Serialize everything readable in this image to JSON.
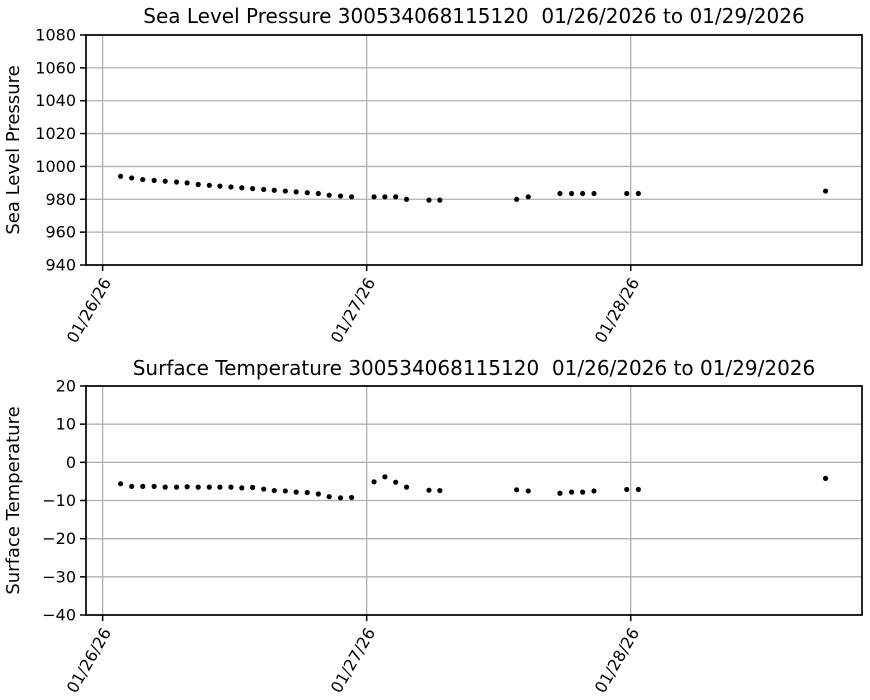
{
  "colors": {
    "background": "#ffffff",
    "grid": "#b0b0b0",
    "axis": "#000000",
    "marker": "#000000",
    "text": "#000000"
  },
  "chart_data": [
    {
      "type": "scatter",
      "title": "Sea Level Pressure 300534068115120  01/26/2026 to 01/29/2026",
      "xlabel": "",
      "ylabel": "Sea Level Pressure",
      "ylim": [
        940,
        1080
      ],
      "yticks": [
        {
          "v": 940,
          "label": "940"
        },
        {
          "v": 960,
          "label": "960"
        },
        {
          "v": 980,
          "label": "980"
        },
        {
          "v": 1000,
          "label": "1000"
        },
        {
          "v": 1020,
          "label": "1020"
        },
        {
          "v": 1040,
          "label": "1040"
        },
        {
          "v": 1060,
          "label": "1060"
        },
        {
          "v": 1080,
          "label": "1080"
        }
      ],
      "xlim_days": [
        -0.063,
        2.876
      ],
      "xticks": [
        {
          "day": 0,
          "label": "01/26/26"
        },
        {
          "day": 1,
          "label": "01/27/26"
        },
        {
          "day": 2,
          "label": "01/28/26"
        }
      ],
      "grid": true,
      "legend": "none",
      "marker": "black-dot",
      "x_days": [
        0.068,
        0.11,
        0.152,
        0.195,
        0.237,
        0.28,
        0.32,
        0.362,
        0.404,
        0.444,
        0.486,
        0.527,
        0.568,
        0.61,
        0.65,
        0.692,
        0.733,
        0.775,
        0.817,
        0.858,
        0.901,
        0.943,
        1.028,
        1.069,
        1.11,
        1.151,
        1.236,
        1.277,
        1.568,
        1.612,
        1.732,
        1.776,
        1.818,
        1.861,
        1.985,
        2.029,
        2.738
      ],
      "y": [
        994,
        993,
        992,
        991.5,
        991,
        990.5,
        990,
        989,
        988.5,
        988,
        987.5,
        987,
        986.5,
        986,
        985.5,
        985,
        984.5,
        984,
        983.5,
        982.5,
        982,
        981.5,
        981.5,
        981.5,
        981.5,
        980,
        979.5,
        979.5,
        980,
        981.5,
        983.5,
        983.5,
        983.5,
        983.5,
        983.5,
        983.5,
        985
      ]
    },
    {
      "type": "scatter",
      "title": "Surface Temperature 300534068115120  01/26/2026 to 01/29/2026",
      "xlabel": "",
      "ylabel": "Surface Temperature",
      "ylim": [
        -40,
        20
      ],
      "yticks": [
        {
          "v": -40,
          "label": "−40"
        },
        {
          "v": -30,
          "label": "−30"
        },
        {
          "v": -20,
          "label": "−20"
        },
        {
          "v": -10,
          "label": "−10"
        },
        {
          "v": 0,
          "label": "0"
        },
        {
          "v": 10,
          "label": "10"
        },
        {
          "v": 20,
          "label": "20"
        }
      ],
      "xlim_days": [
        -0.063,
        2.876
      ],
      "xticks": [
        {
          "day": 0,
          "label": "01/26/26"
        },
        {
          "day": 1,
          "label": "01/27/26"
        },
        {
          "day": 2,
          "label": "01/28/26"
        }
      ],
      "grid": true,
      "legend": "none",
      "marker": "black-dot",
      "x_days": [
        0.068,
        0.11,
        0.152,
        0.195,
        0.237,
        0.28,
        0.32,
        0.362,
        0.404,
        0.444,
        0.486,
        0.527,
        0.568,
        0.61,
        0.65,
        0.692,
        0.733,
        0.775,
        0.817,
        0.858,
        0.901,
        0.943,
        1.028,
        1.069,
        1.11,
        1.151,
        1.236,
        1.277,
        1.568,
        1.612,
        1.732,
        1.776,
        1.818,
        1.861,
        1.985,
        2.029,
        2.738
      ],
      "y": [
        -5.6,
        -6.3,
        -6.3,
        -6.3,
        -6.5,
        -6.5,
        -6.4,
        -6.5,
        -6.5,
        -6.5,
        -6.5,
        -6.7,
        -6.6,
        -7.0,
        -7.4,
        -7.5,
        -7.8,
        -7.9,
        -8.3,
        -9.0,
        -9.3,
        -9.2,
        -5.1,
        -3.8,
        -5.2,
        -6.5,
        -7.3,
        -7.4,
        -7.2,
        -7.5,
        -8.1,
        -7.8,
        -7.8,
        -7.5,
        -7.1,
        -7.1,
        -4.2
      ]
    }
  ]
}
